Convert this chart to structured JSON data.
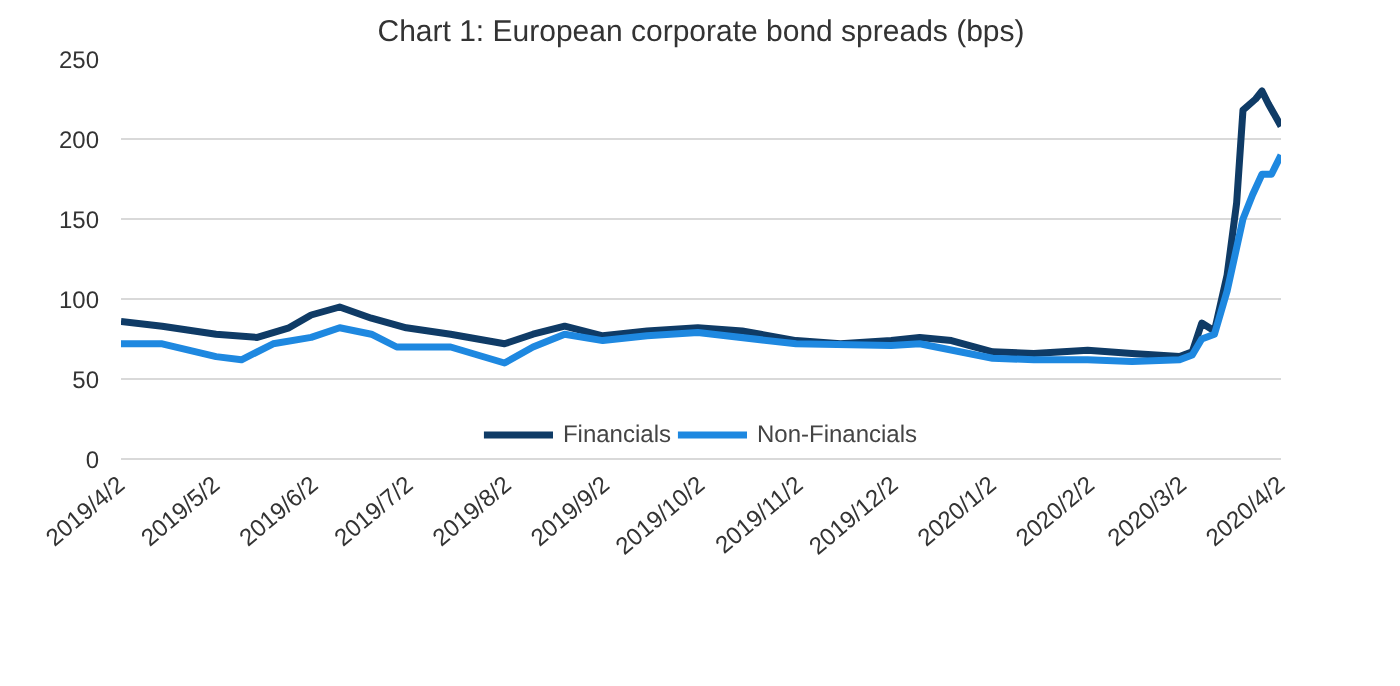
{
  "chart_data": {
    "type": "line",
    "title": "Chart 1: European corporate bond spreads (bps)",
    "x": [
      "2019-04-02",
      "2019-04-15",
      "2019-05-02",
      "2019-05-15",
      "2019-05-25",
      "2019-06-01",
      "2019-06-10",
      "2019-06-20",
      "2019-07-01",
      "2019-07-15",
      "2019-08-01",
      "2019-08-10",
      "2019-08-20",
      "2019-09-01",
      "2019-09-15",
      "2019-10-01",
      "2019-10-15",
      "2019-11-01",
      "2019-11-15",
      "2019-12-01",
      "2019-12-10",
      "2019-12-20",
      "2020-01-02",
      "2020-01-15",
      "2020-02-01",
      "2020-02-15",
      "2020-03-01",
      "2020-03-05",
      "2020-03-08",
      "2020-03-12",
      "2020-03-16",
      "2020-03-19",
      "2020-03-21",
      "2020-03-25",
      "2020-03-27",
      "2020-03-29",
      "2020-04-02"
    ],
    "series": [
      {
        "name": "Financials",
        "color": "#0f3b66",
        "values": [
          86,
          83,
          78,
          76,
          82,
          90,
          95,
          88,
          82,
          78,
          72,
          78,
          83,
          77,
          80,
          82,
          80,
          74,
          72,
          74,
          76,
          74,
          67,
          66,
          68,
          66,
          64,
          67,
          85,
          80,
          115,
          160,
          218,
          225,
          230,
          222,
          208
        ]
      },
      {
        "name": "Non-Financials",
        "color": "#1e88e0",
        "x": [
          "2019-04-02",
          "2019-04-15",
          "2019-05-02",
          "2019-05-10",
          "2019-05-20",
          "2019-06-01",
          "2019-06-10",
          "2019-06-20",
          "2019-06-28",
          "2019-07-15",
          "2019-08-01",
          "2019-08-10",
          "2019-08-20",
          "2019-09-01",
          "2019-09-15",
          "2019-10-01",
          "2019-11-01",
          "2019-12-01",
          "2019-12-10",
          "2020-01-02",
          "2020-01-15",
          "2020-02-01",
          "2020-02-15",
          "2020-03-01",
          "2020-03-05",
          "2020-03-08",
          "2020-03-12",
          "2020-03-16",
          "2020-03-21",
          "2020-03-24",
          "2020-03-27",
          "2020-03-30",
          "2020-04-02"
        ],
        "values": [
          72,
          72,
          64,
          62,
          72,
          76,
          82,
          78,
          70,
          70,
          60,
          70,
          78,
          74,
          77,
          79,
          72,
          71,
          72,
          63,
          62,
          62,
          61,
          62,
          65,
          75,
          78,
          105,
          150,
          165,
          178,
          178,
          190
        ]
      }
    ],
    "xlim": [
      "2019-04-02",
      "2020-04-02"
    ],
    "xticks": [
      {
        "value": "2019-04-02",
        "label": "2019/4/2"
      },
      {
        "value": "2019-05-02",
        "label": "2019/5/2"
      },
      {
        "value": "2019-06-02",
        "label": "2019/6/2"
      },
      {
        "value": "2019-07-02",
        "label": "2019/7/2"
      },
      {
        "value": "2019-08-02",
        "label": "2019/8/2"
      },
      {
        "value": "2019-09-02",
        "label": "2019/9/2"
      },
      {
        "value": "2019-10-02",
        "label": "2019/10/2"
      },
      {
        "value": "2019-11-02",
        "label": "2019/11/2"
      },
      {
        "value": "2019-12-02",
        "label": "2019/12/2"
      },
      {
        "value": "2020-01-02",
        "label": "2020/1/2"
      },
      {
        "value": "2020-02-02",
        "label": "2020/2/2"
      },
      {
        "value": "2020-03-02",
        "label": "2020/3/2"
      },
      {
        "value": "2020-04-02",
        "label": "2020/4/2"
      }
    ],
    "ylim": [
      0,
      250
    ],
    "yticks": [
      0,
      50,
      100,
      150,
      200,
      250
    ],
    "grid": "y",
    "legend": "bottom",
    "marker": "none",
    "line_style": "solid"
  }
}
